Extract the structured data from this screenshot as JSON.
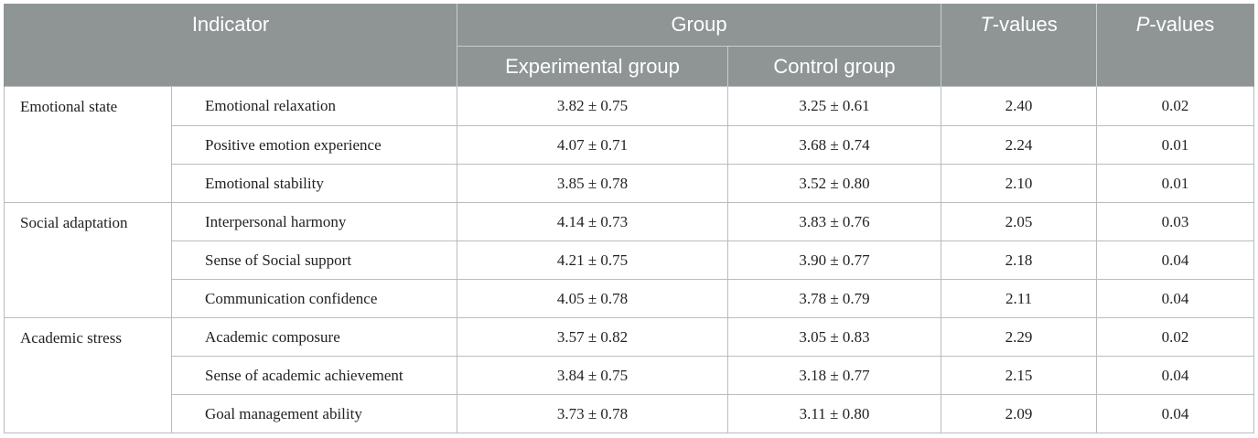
{
  "headers": {
    "indicator": "Indicator",
    "group": "Group",
    "experimental": "Experimental group",
    "control": "Control group",
    "t_letter": "T",
    "t_suffix": "-values",
    "p_letter": "P",
    "p_suffix": "-values"
  },
  "sections": [
    {
      "category": "Emotional state",
      "rows": [
        {
          "indicator": "Emotional relaxation",
          "experimental": "3.82 ± 0.75",
          "control": "3.25 ± 0.61",
          "t": "2.40",
          "p": "0.02"
        },
        {
          "indicator": "Positive emotion experience",
          "experimental": "4.07 ± 0.71",
          "control": "3.68 ± 0.74",
          "t": "2.24",
          "p": "0.01"
        },
        {
          "indicator": "Emotional stability",
          "experimental": "3.85 ± 0.78",
          "control": "3.52 ± 0.80",
          "t": "2.10",
          "p": "0.01"
        }
      ]
    },
    {
      "category": "Social adaptation",
      "rows": [
        {
          "indicator": "Interpersonal harmony",
          "experimental": "4.14 ± 0.73",
          "control": "3.83 ± 0.76",
          "t": "2.05",
          "p": "0.03"
        },
        {
          "indicator": "Sense of Social support",
          "experimental": "4.21 ± 0.75",
          "control": "3.90 ± 0.77",
          "t": "2.18",
          "p": "0.04"
        },
        {
          "indicator": "Communication confidence",
          "experimental": "4.05 ± 0.78",
          "control": "3.78 ± 0.79",
          "t": "2.11",
          "p": "0.04"
        }
      ]
    },
    {
      "category": "Academic stress",
      "rows": [
        {
          "indicator": "Academic composure",
          "experimental": "3.57 ± 0.82",
          "control": "3.05 ± 0.83",
          "t": "2.29",
          "p": "0.02"
        },
        {
          "indicator": "Sense of academic achievement",
          "experimental": "3.84 ± 0.75",
          "control": "3.18 ± 0.77",
          "t": "2.15",
          "p": "0.04"
        },
        {
          "indicator": "Goal management ability",
          "experimental": "3.73 ± 0.78",
          "control": "3.11 ± 0.80",
          "t": "2.09",
          "p": "0.04"
        }
      ]
    }
  ],
  "colors": {
    "header_bg": "#8f9595",
    "header_text": "#ffffff",
    "grid": "#b9bdbd"
  }
}
